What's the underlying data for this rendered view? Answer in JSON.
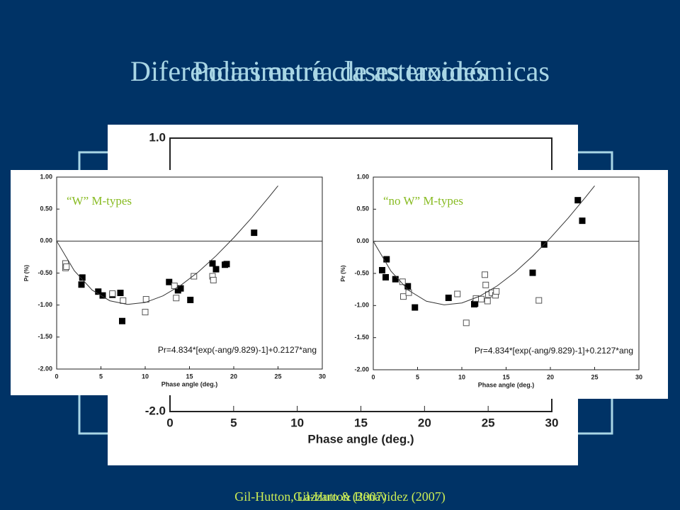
{
  "slide": {
    "titles": [
      "Diferencias entre clases taxonómicas",
      "Polarimetría de asteroides"
    ],
    "credits": [
      "Gil-Hutton, Lazzaro & Benavidez (2007)",
      "Gil-Hutton (2007)"
    ]
  },
  "chart_data": [
    {
      "type": "scatter",
      "xlabel": "Phase angle (deg.)",
      "xlim": [
        0,
        30
      ],
      "ylim": [
        -2.0,
        1.0
      ],
      "xticks": [
        0,
        5,
        10,
        15,
        20,
        25,
        30
      ],
      "yticks": [
        {
          "value": 1.0,
          "label": "1.0"
        },
        {
          "value": -2.0,
          "label": "-2.0"
        }
      ],
      "series": []
    },
    {
      "type": "scatter",
      "label": "“W” M-types",
      "xlabel": "Phase angle (deg.)",
      "ylabel": "Pr (%)",
      "annotation": "Pr=4.834*[exp(-ang/9.829)-1]+0.2127*ang",
      "xlim": [
        0,
        30
      ],
      "ylim": [
        -2.0,
        1.0
      ],
      "xticks": [
        0,
        5,
        10,
        15,
        20,
        25,
        30
      ],
      "yticks": [
        {
          "value": 1.0,
          "label": "1.00"
        },
        {
          "value": 0.5,
          "label": "0.50"
        },
        {
          "value": 0,
          "label": "0.00"
        },
        {
          "value": -0.5,
          "label": "-0.50"
        },
        {
          "value": -1.0,
          "label": "-1.00"
        },
        {
          "value": -1.5,
          "label": "-1.50"
        },
        {
          "value": -2.0,
          "label": "-2.00"
        }
      ],
      "series": [
        {
          "marker": "filled",
          "color": "#000000",
          "x": [
            2.8,
            2.9,
            4.7,
            5.2,
            6.3,
            7.2,
            7.4,
            12.7,
            13.7,
            14.0,
            15.1,
            17.6,
            18.0,
            19.0,
            19.2,
            22.3
          ],
          "values": [
            -0.68,
            -0.57,
            -0.79,
            -0.85,
            -0.84,
            -0.81,
            -1.25,
            -0.64,
            -0.77,
            -0.74,
            -0.92,
            -0.35,
            -0.44,
            -0.37,
            -0.36,
            0.13
          ]
        },
        {
          "marker": "open",
          "color": "#555555",
          "x": [
            1.0,
            1.0,
            1.1,
            6.3,
            7.5,
            10.1,
            10.0,
            13.3,
            13.5,
            15.5,
            17.6,
            17.7
          ],
          "values": [
            -0.35,
            -0.42,
            -0.4,
            -0.82,
            -0.93,
            -0.91,
            -1.11,
            -0.7,
            -0.89,
            -0.55,
            -0.55,
            -0.61
          ]
        },
        {
          "marker": "line",
          "color": "#333333",
          "x": [
            0,
            2,
            4,
            6,
            8,
            10,
            12,
            14,
            16,
            18,
            20,
            22,
            24,
            25
          ],
          "values": [
            0,
            -0.465,
            -0.765,
            -0.933,
            -0.99,
            -0.96,
            -0.856,
            -0.693,
            -0.482,
            -0.231,
            0.052,
            0.36,
            0.692,
            0.864
          ]
        }
      ]
    },
    {
      "type": "scatter",
      "label": "“no W” M-types",
      "xlabel": "Phase angle (deg.)",
      "ylabel": "Pr (%)",
      "annotation": "Pr=4.834*[exp(-ang/9.829)-1]+0.2127*ang",
      "xlim": [
        0,
        30
      ],
      "ylim": [
        -2.0,
        1.0
      ],
      "xticks": [
        0,
        5,
        10,
        15,
        20,
        25,
        30
      ],
      "yticks": [
        {
          "value": 1.0,
          "label": "1.00"
        },
        {
          "value": 0.5,
          "label": "0.50"
        },
        {
          "value": 0,
          "label": "0.00"
        },
        {
          "value": -0.5,
          "label": "-0.50"
        },
        {
          "value": -1.0,
          "label": "-1.00"
        },
        {
          "value": -1.5,
          "label": "-1.50"
        },
        {
          "value": -2.0,
          "label": "-2.00"
        }
      ],
      "series": [
        {
          "marker": "filled",
          "color": "#000000",
          "x": [
            1.0,
            1.4,
            1.5,
            2.5,
            3.9,
            4.7,
            8.5,
            11.5,
            11.4,
            18.0,
            19.3,
            23.1,
            23.6
          ],
          "values": [
            -0.45,
            -0.56,
            -0.28,
            -0.59,
            -0.7,
            -1.03,
            -0.88,
            -0.97,
            -0.98,
            -0.49,
            -0.05,
            0.64,
            0.32
          ]
        },
        {
          "marker": "open",
          "color": "#555555",
          "x": [
            3.3,
            3.4,
            4.0,
            9.5,
            10.5,
            11.6,
            12.2,
            12.6,
            12.7,
            12.9,
            13.0,
            13.4,
            13.8,
            13.9,
            18.7
          ],
          "values": [
            -0.63,
            -0.86,
            -0.8,
            -0.82,
            -1.27,
            -0.89,
            -0.9,
            -0.52,
            -0.68,
            -0.93,
            -0.83,
            -0.8,
            -0.84,
            -0.78,
            -0.92
          ]
        },
        {
          "marker": "line",
          "color": "#333333",
          "x": [
            0,
            2,
            4,
            6,
            8,
            10,
            12,
            14,
            16,
            18,
            20,
            22,
            24,
            25
          ],
          "values": [
            0,
            -0.465,
            -0.765,
            -0.933,
            -0.99,
            -0.96,
            -0.856,
            -0.693,
            -0.482,
            -0.231,
            0.052,
            0.36,
            0.692,
            0.864
          ]
        }
      ]
    }
  ]
}
